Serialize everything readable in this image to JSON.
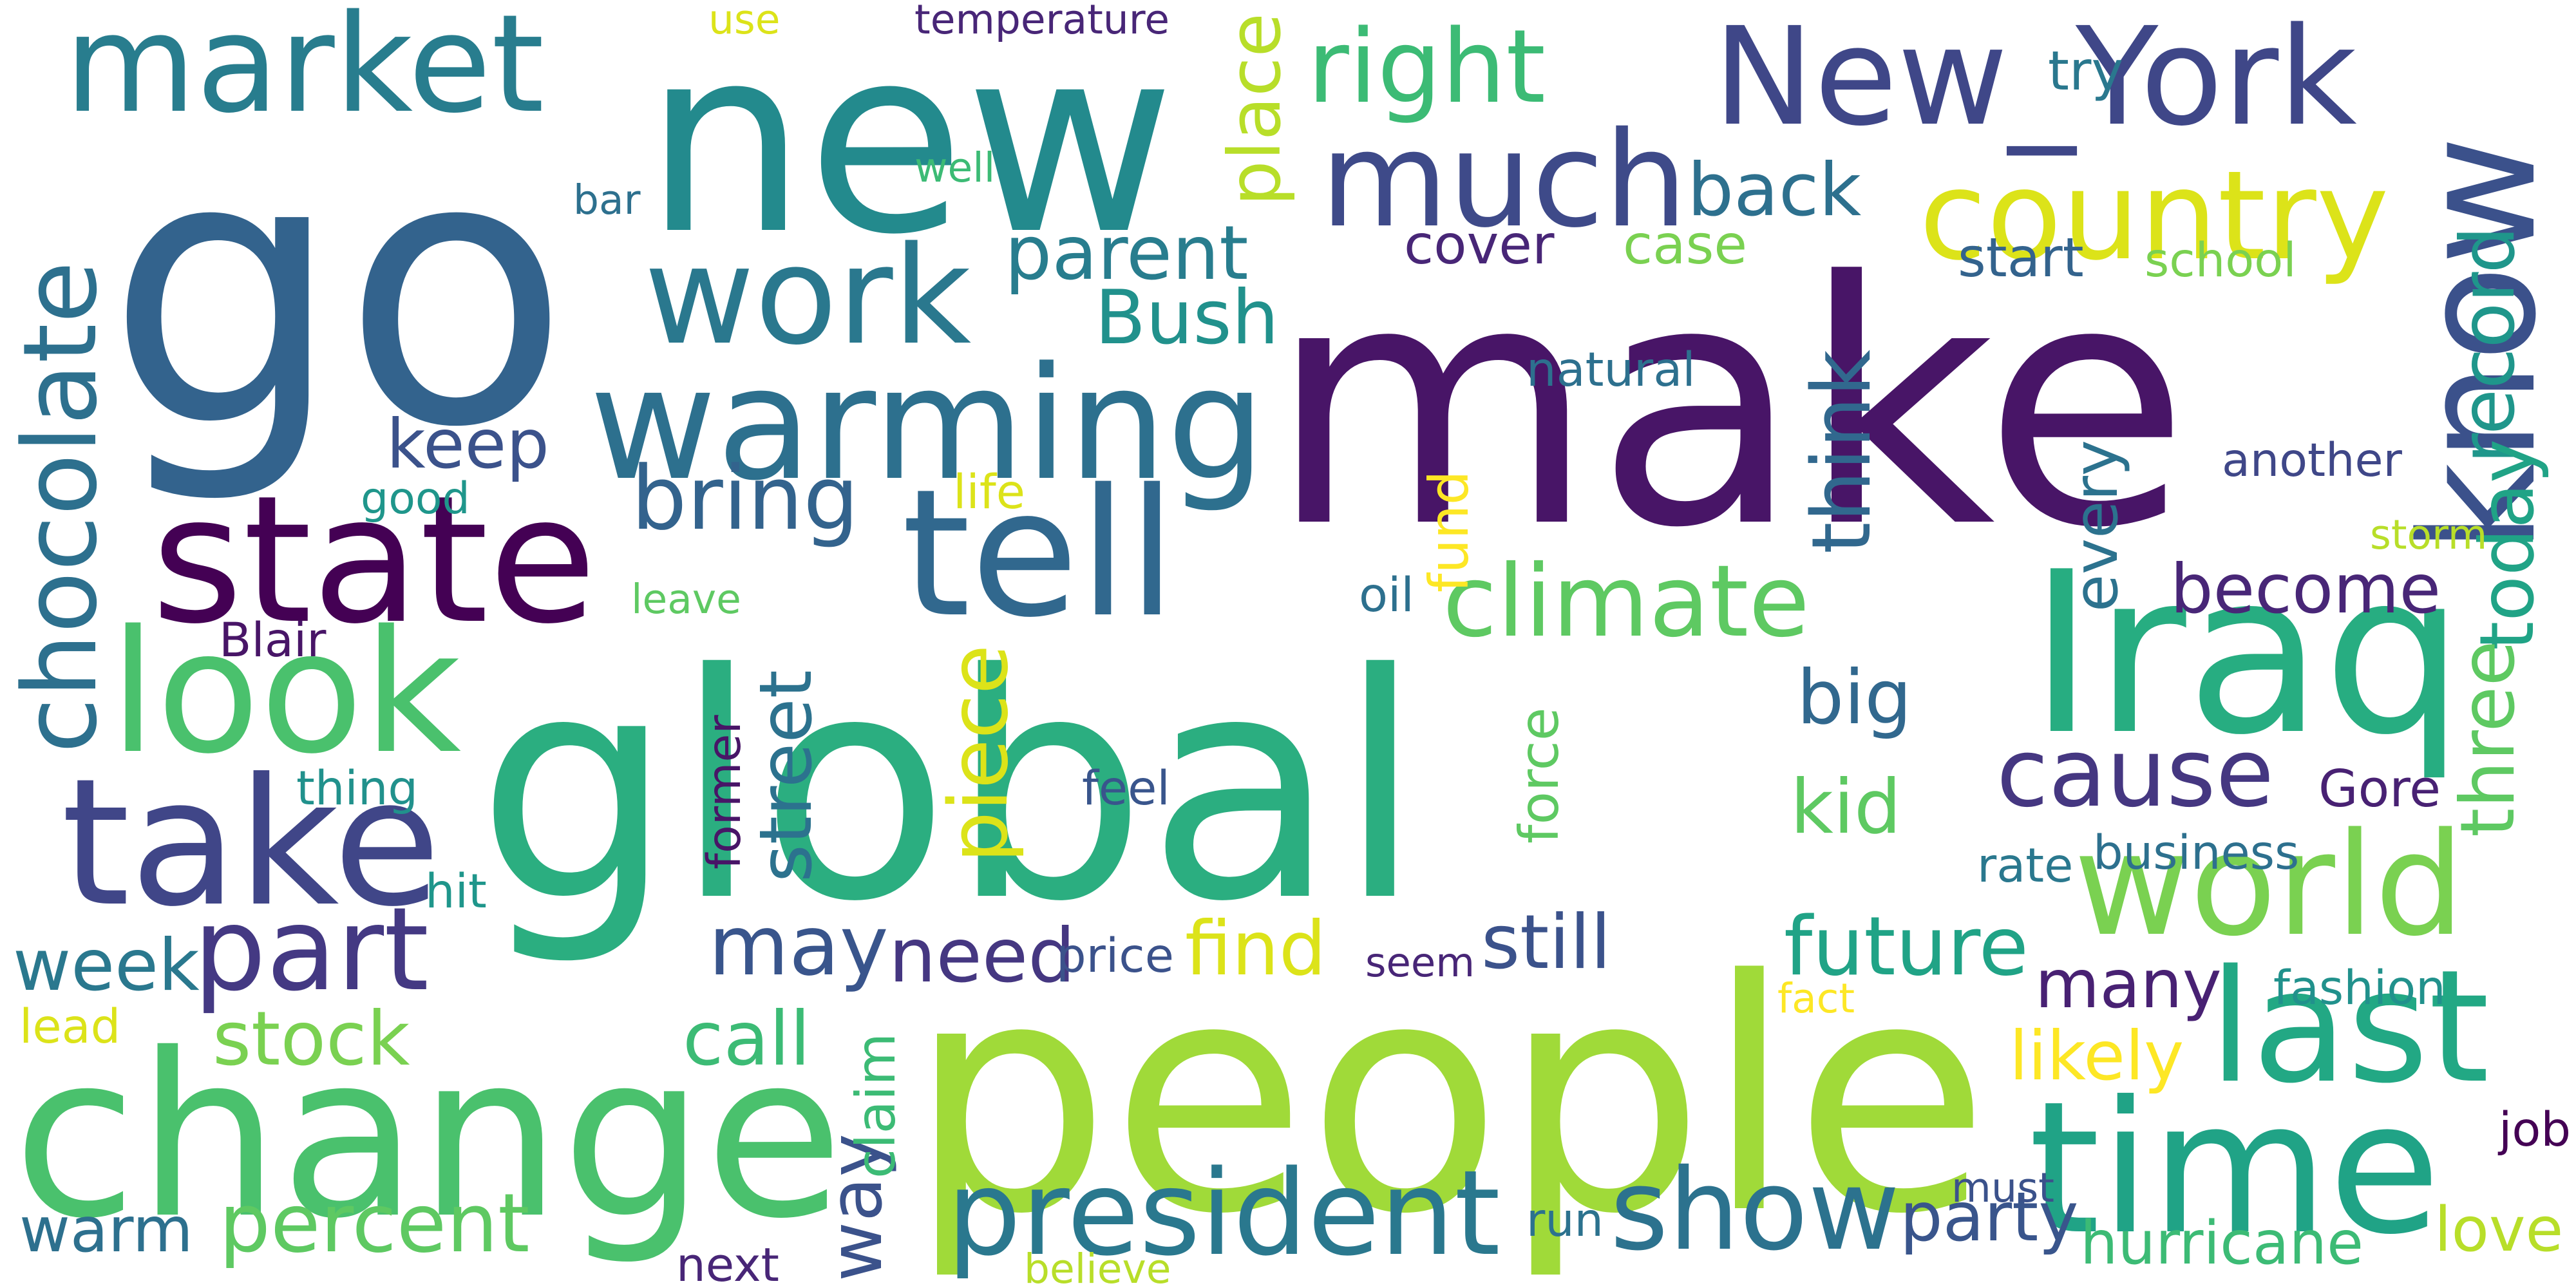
{
  "words": [
    {
      "text": "make",
      "color": "#481567",
      "orientation": "horizontal"
    },
    {
      "text": "global",
      "color": "#2BAE80",
      "orientation": "horizontal"
    },
    {
      "text": "go",
      "color": "#33638D",
      "orientation": "horizontal"
    },
    {
      "text": "new",
      "color": "#238A8D",
      "orientation": "horizontal"
    },
    {
      "text": "people",
      "color": "#A0DA39",
      "orientation": "horizontal"
    },
    {
      "text": "change",
      "color": "#4AC16D",
      "orientation": "horizontal"
    },
    {
      "text": "New_York",
      "color": "#3F4788",
      "orientation": "horizontal"
    },
    {
      "text": "Iraq",
      "color": "#27AD81",
      "orientation": "horizontal"
    },
    {
      "text": "warming",
      "color": "#2D708E",
      "orientation": "horizontal"
    },
    {
      "text": "time",
      "color": "#20A386",
      "orientation": "horizontal"
    },
    {
      "text": "state",
      "color": "#440154",
      "orientation": "horizontal"
    },
    {
      "text": "tell",
      "color": "#31688E",
      "orientation": "horizontal"
    },
    {
      "text": "much",
      "color": "#3E4A89",
      "orientation": "horizontal"
    },
    {
      "text": "market",
      "color": "#287D8E",
      "orientation": "horizontal"
    },
    {
      "text": "world",
      "color": "#7AD151",
      "orientation": "horizontal"
    },
    {
      "text": "look",
      "color": "#4AC16D",
      "orientation": "horizontal"
    },
    {
      "text": "take",
      "color": "#404688",
      "orientation": "horizontal"
    },
    {
      "text": "know",
      "color": "#3B518B",
      "orientation": "vertical"
    },
    {
      "text": "last",
      "color": "#22A884",
      "orientation": "horizontal"
    },
    {
      "text": "work",
      "color": "#2A788E",
      "orientation": "horizontal"
    },
    {
      "text": "part",
      "color": "#443983",
      "orientation": "horizontal"
    },
    {
      "text": "show",
      "color": "#2C728E",
      "orientation": "horizontal"
    },
    {
      "text": "president",
      "color": "#2A788E",
      "orientation": "horizontal"
    },
    {
      "text": "country",
      "color": "#DCE319",
      "orientation": "horizontal"
    },
    {
      "text": "chocolate",
      "color": "#2D708E",
      "orientation": "vertical"
    },
    {
      "text": "climate",
      "color": "#5EC962",
      "orientation": "horizontal"
    },
    {
      "text": "cause",
      "color": "#453781",
      "orientation": "horizontal"
    },
    {
      "text": "right",
      "color": "#3CBB75",
      "orientation": "horizontal"
    },
    {
      "text": "bring",
      "color": "#33638D",
      "orientation": "horizontal"
    },
    {
      "text": "may",
      "color": "#39558C",
      "orientation": "horizontal"
    },
    {
      "text": "need",
      "color": "#453781",
      "orientation": "horizontal"
    },
    {
      "text": "week",
      "color": "#2A788E",
      "orientation": "horizontal"
    },
    {
      "text": "future",
      "color": "#20A386",
      "orientation": "horizontal"
    },
    {
      "text": "warm",
      "color": "#2D708E",
      "orientation": "horizontal"
    },
    {
      "text": "percent",
      "color": "#5EC962",
      "orientation": "horizontal"
    },
    {
      "text": "back",
      "color": "#2D708E",
      "orientation": "horizontal"
    },
    {
      "text": "become",
      "color": "#482677",
      "orientation": "horizontal"
    },
    {
      "text": "still",
      "color": "#3B528B",
      "orientation": "horizontal"
    },
    {
      "text": "many",
      "color": "#482173",
      "orientation": "horizontal"
    },
    {
      "text": "parent",
      "color": "#287D8E",
      "orientation": "horizontal"
    },
    {
      "text": "Bush",
      "color": "#21918C",
      "orientation": "horizontal"
    },
    {
      "text": "keep",
      "color": "#3B528B",
      "orientation": "horizontal"
    },
    {
      "text": "big",
      "color": "#31688E",
      "orientation": "horizontal"
    },
    {
      "text": "kid",
      "color": "#5EC962",
      "orientation": "horizontal"
    },
    {
      "text": "Gore",
      "color": "#482173",
      "orientation": "horizontal"
    },
    {
      "text": "find",
      "color": "#DCE319",
      "orientation": "horizontal"
    },
    {
      "text": "call",
      "color": "#3CBB75",
      "orientation": "horizontal"
    },
    {
      "text": "stock",
      "color": "#7AD151",
      "orientation": "horizontal"
    },
    {
      "text": "way",
      "color": "#3B528B",
      "orientation": "vertical"
    },
    {
      "text": "street",
      "color": "#2C728E",
      "orientation": "vertical"
    },
    {
      "text": "piece",
      "color": "#DCE319",
      "orientation": "vertical"
    },
    {
      "text": "think",
      "color": "#31688E",
      "orientation": "vertical"
    },
    {
      "text": "place",
      "color": "#B8DE29",
      "orientation": "vertical"
    },
    {
      "text": "record",
      "color": "#1F968B",
      "orientation": "vertical"
    },
    {
      "text": "today",
      "color": "#20A386",
      "orientation": "vertical"
    },
    {
      "text": "three",
      "color": "#5EC962",
      "orientation": "vertical"
    },
    {
      "text": "every",
      "color": "#2C728E",
      "orientation": "vertical"
    },
    {
      "text": "party",
      "color": "#39558C",
      "orientation": "horizontal"
    },
    {
      "text": "hurricane",
      "color": "#3CBB75",
      "orientation": "horizontal"
    },
    {
      "text": "love",
      "color": "#B8DE29",
      "orientation": "horizontal"
    },
    {
      "text": "likely",
      "color": "#FDE725",
      "orientation": "horizontal"
    },
    {
      "text": "try",
      "color": "#2A788E",
      "orientation": "horizontal"
    },
    {
      "text": "start",
      "color": "#33638D",
      "orientation": "horizontal"
    },
    {
      "text": "school",
      "color": "#7AD151",
      "orientation": "horizontal"
    },
    {
      "text": "cover",
      "color": "#482677",
      "orientation": "horizontal"
    },
    {
      "text": "case",
      "color": "#7AD151",
      "orientation": "horizontal"
    },
    {
      "text": "natural",
      "color": "#2D708E",
      "orientation": "horizontal"
    },
    {
      "text": "another",
      "color": "#3F4788",
      "orientation": "horizontal"
    },
    {
      "text": "storm",
      "color": "#B8DE29",
      "orientation": "horizontal"
    },
    {
      "text": "business",
      "color": "#2D708E",
      "orientation": "horizontal"
    },
    {
      "text": "rate",
      "color": "#2A788E",
      "orientation": "horizontal"
    },
    {
      "text": "fashion",
      "color": "#21918C",
      "orientation": "horizontal"
    },
    {
      "text": "fact",
      "color": "#FDE725",
      "orientation": "horizontal"
    },
    {
      "text": "must",
      "color": "#3B528B",
      "orientation": "horizontal"
    },
    {
      "text": "job",
      "color": "#440154",
      "orientation": "horizontal"
    },
    {
      "text": "run",
      "color": "#2C728E",
      "orientation": "horizontal"
    },
    {
      "text": "next",
      "color": "#482677",
      "orientation": "horizontal"
    },
    {
      "text": "believe",
      "color": "#B8DE29",
      "orientation": "horizontal"
    },
    {
      "text": "claim",
      "color": "#3CBB75",
      "orientation": "vertical"
    },
    {
      "text": "price",
      "color": "#3B528B",
      "orientation": "horizontal"
    },
    {
      "text": "seem",
      "color": "#482677",
      "orientation": "horizontal"
    },
    {
      "text": "former",
      "color": "#481567",
      "orientation": "vertical"
    },
    {
      "text": "force",
      "color": "#5EC962",
      "orientation": "vertical"
    },
    {
      "text": "fund",
      "color": "#FDE725",
      "orientation": "vertical"
    },
    {
      "text": "feel",
      "color": "#39558C",
      "orientation": "horizontal"
    },
    {
      "text": "oil",
      "color": "#2D708E",
      "orientation": "horizontal"
    },
    {
      "text": "leave",
      "color": "#5EC962",
      "orientation": "horizontal"
    },
    {
      "text": "life",
      "color": "#DCE319",
      "orientation": "horizontal"
    },
    {
      "text": "good",
      "color": "#1F968B",
      "orientation": "horizontal"
    },
    {
      "text": "Blair",
      "color": "#481567",
      "orientation": "horizontal"
    },
    {
      "text": "thing",
      "color": "#21918C",
      "orientation": "horizontal"
    },
    {
      "text": "hit",
      "color": "#1F968B",
      "orientation": "horizontal"
    },
    {
      "text": "lead",
      "color": "#DCE319",
      "orientation": "horizontal"
    },
    {
      "text": "bar",
      "color": "#2D708E",
      "orientation": "horizontal"
    },
    {
      "text": "use",
      "color": "#DCE319",
      "orientation": "horizontal"
    },
    {
      "text": "temperature",
      "color": "#482677",
      "orientation": "horizontal"
    },
    {
      "text": "well",
      "color": "#3CBB75",
      "orientation": "horizontal"
    }
  ]
}
